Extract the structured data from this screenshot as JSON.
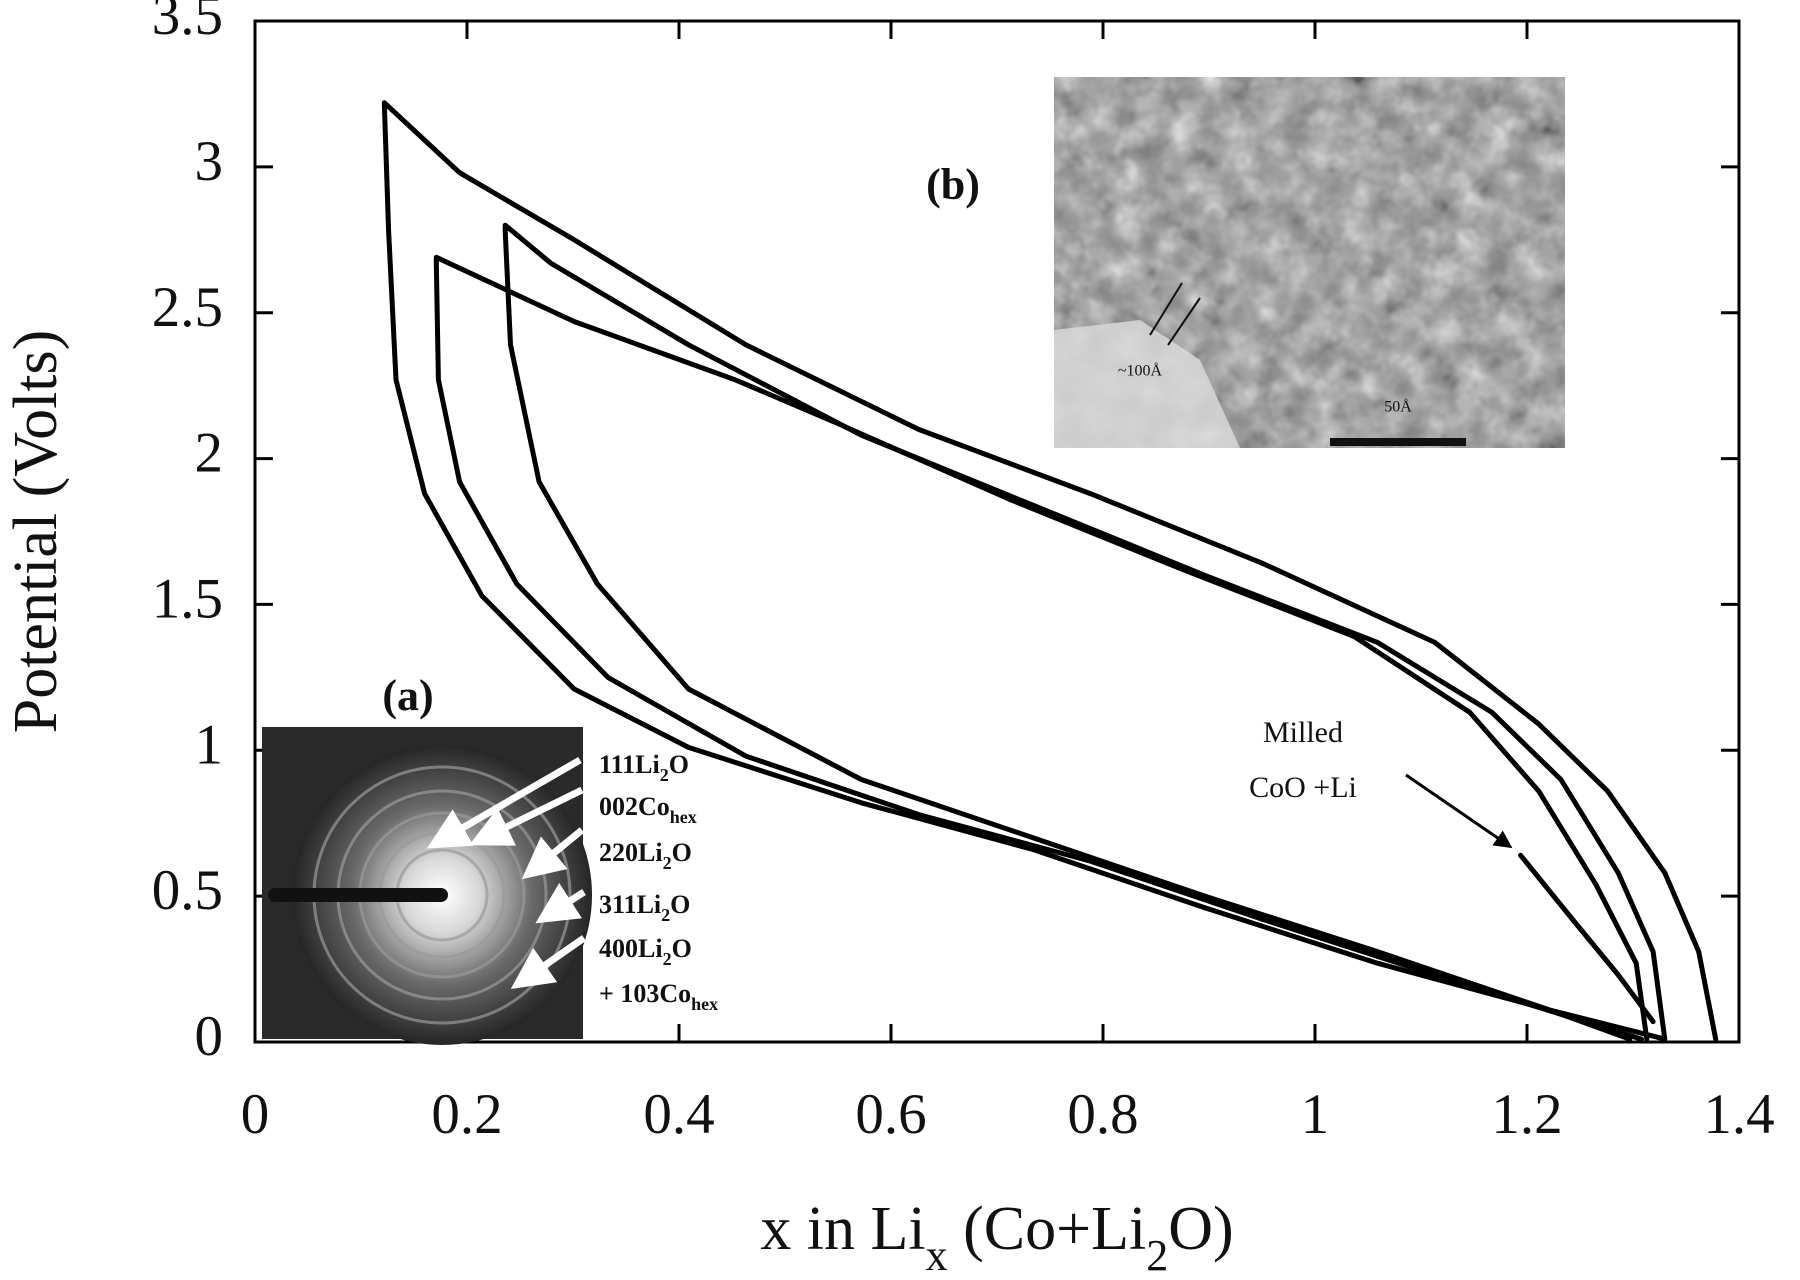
{
  "chart_data": {
    "type": "line",
    "xlabel": [
      "x in Li",
      "x",
      " (Co+Li",
      "2",
      "O)"
    ],
    "ylabel": "Potential (Volts)",
    "xlim": [
      0,
      1.4
    ],
    "ylim": [
      0,
      3.5
    ],
    "xticks": [
      0,
      0.2,
      0.4,
      0.6,
      0.8,
      1,
      1.2,
      1.4
    ],
    "yticks": [
      0,
      0.5,
      1,
      1.5,
      2,
      2.5,
      3,
      3.5
    ],
    "color": "#000000",
    "series": [
      {
        "x": [
          1.378,
          1.362,
          1.33,
          1.276,
          1.211,
          1.113,
          0.951,
          0.788,
          0.626,
          0.463,
          0.301,
          0.193,
          0.122,
          0.126,
          0.133,
          0.16,
          0.214,
          0.301,
          0.409,
          0.572,
          0.734,
          0.896,
          1.059,
          1.221,
          1.297
        ],
        "values": [
          0.01,
          0.31,
          0.58,
          0.86,
          1.09,
          1.37,
          1.64,
          1.88,
          2.1,
          2.39,
          2.75,
          2.98,
          3.22,
          2.78,
          2.27,
          1.88,
          1.53,
          1.21,
          1.01,
          0.82,
          0.66,
          0.46,
          0.27,
          0.11,
          0.01
        ]
      },
      {
        "x": [
          1.33,
          1.319,
          1.286,
          1.232,
          1.167,
          1.059,
          0.896,
          0.734,
          0.572,
          0.409,
          0.279,
          0.236,
          0.236,
          0.241,
          0.268,
          0.323,
          0.409,
          0.572,
          0.734,
          0.896,
          1.059,
          1.221,
          1.33
        ],
        "values": [
          0.01,
          0.31,
          0.58,
          0.9,
          1.13,
          1.37,
          1.6,
          1.84,
          2.08,
          2.39,
          2.67,
          2.8,
          2.78,
          2.39,
          1.92,
          1.57,
          1.21,
          0.9,
          0.7,
          0.5,
          0.31,
          0.11,
          0.01
        ]
      },
      {
        "x": [
          1.313,
          1.303,
          1.265,
          1.211,
          1.146,
          1.037,
          0.875,
          0.712,
          0.55,
          0.453,
          0.301,
          0.171,
          0.171,
          0.173,
          0.193,
          0.247,
          0.333,
          0.463,
          0.626,
          0.788,
          0.951,
          1.113,
          1.254,
          1.308
        ],
        "values": [
          0.01,
          0.27,
          0.54,
          0.86,
          1.13,
          1.39,
          1.62,
          1.86,
          2.12,
          2.27,
          2.47,
          2.69,
          2.67,
          2.27,
          1.92,
          1.57,
          1.25,
          0.98,
          0.78,
          0.62,
          0.42,
          0.23,
          0.07,
          0.01
        ]
      },
      {
        "x": [
          1.194,
          1.243,
          1.286,
          1.319
        ],
        "values": [
          0.64,
          0.42,
          0.23,
          0.07
        ]
      }
    ],
    "annotations": [
      "Milled",
      "CoO +Li"
    ],
    "inset_a": {
      "label": "(a)",
      "ring_labels": [
        [
          "111Li",
          "2",
          "O"
        ],
        [
          "002Co",
          "hex"
        ],
        [
          "220Li",
          "2",
          "O"
        ],
        [
          "311Li",
          "2",
          "O"
        ],
        [
          "400Li",
          "2",
          "O"
        ],
        [
          "+ 103Co",
          "hex"
        ]
      ]
    },
    "inset_b": {
      "label": "(b)",
      "texts": [
        "~100Å",
        "50Å"
      ]
    }
  }
}
